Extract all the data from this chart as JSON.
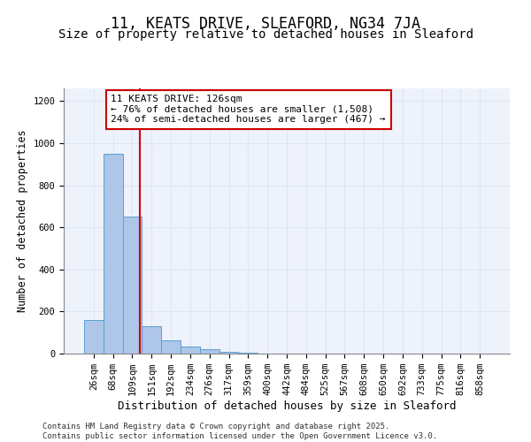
{
  "title": "11, KEATS DRIVE, SLEAFORD, NG34 7JA",
  "subtitle": "Size of property relative to detached houses in Sleaford",
  "xlabel": "Distribution of detached houses by size in Sleaford",
  "ylabel": "Number of detached properties",
  "categories": [
    "26sqm",
    "68sqm",
    "109sqm",
    "151sqm",
    "192sqm",
    "234sqm",
    "276sqm",
    "317sqm",
    "359sqm",
    "400sqm",
    "442sqm",
    "484sqm",
    "525sqm",
    "567sqm",
    "608sqm",
    "650sqm",
    "692sqm",
    "733sqm",
    "775sqm",
    "816sqm",
    "858sqm"
  ],
  "bar_heights": [
    160,
    950,
    650,
    130,
    65,
    35,
    20,
    8,
    3,
    1,
    1,
    0,
    0,
    0,
    0,
    0,
    0,
    0,
    0,
    0,
    0
  ],
  "bar_color": "#aec6e8",
  "bar_edge_color": "#5a9fd4",
  "vline_color": "#cc0000",
  "annotation_line1": "11 KEATS DRIVE: 126sqm",
  "annotation_line2": "← 76% of detached houses are smaller (1,508)",
  "annotation_line3": "24% of semi-detached houses are larger (467) →",
  "annotation_box_color": "#ffffff",
  "annotation_border_color": "#cc0000",
  "ylim": [
    0,
    1260
  ],
  "yticks": [
    0,
    200,
    400,
    600,
    800,
    1000,
    1200
  ],
  "grid_color": "#dce6f5",
  "background_color": "#eef2fb",
  "footer_text": "Contains HM Land Registry data © Crown copyright and database right 2025.\nContains public sector information licensed under the Open Government Licence v3.0.",
  "title_fontsize": 12,
  "subtitle_fontsize": 10,
  "xlabel_fontsize": 9,
  "ylabel_fontsize": 8.5,
  "tick_fontsize": 7.5,
  "annotation_fontsize": 8,
  "footer_fontsize": 6.5
}
